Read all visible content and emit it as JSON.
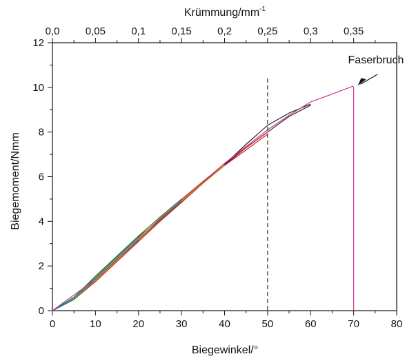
{
  "chart_data": {
    "type": "line",
    "title": "",
    "xlabel": "Biegewinkel/°",
    "ylabel": "Biegemoment/Nmm",
    "x2label": {
      "base": "Krümmung/mm",
      "sup": "-1"
    },
    "xlim": [
      0,
      80
    ],
    "ylim": [
      0,
      12
    ],
    "x2lim": [
      0,
      0.4
    ],
    "xticks": [
      "0",
      "10",
      "20",
      "30",
      "40",
      "50",
      "60",
      "70",
      "80"
    ],
    "yticks": [
      "0",
      "2",
      "4",
      "6",
      "8",
      "10",
      "12"
    ],
    "x2ticks": [
      "0,0",
      "0,05",
      "0,1",
      "0,15",
      "0,2",
      "0,25",
      "0,3",
      "0,35"
    ],
    "grid": false,
    "legend": "none",
    "reference_line": {
      "x": 50,
      "style": "dashed",
      "color": "#333333"
    },
    "annotation": {
      "text": "Faserbruch",
      "x": 70,
      "y": 10.05
    },
    "series": [
      {
        "color": "#222222",
        "x": [
          0,
          5,
          10,
          15,
          20,
          25,
          30,
          35,
          40,
          45,
          50,
          55,
          60
        ],
        "y": [
          0,
          0.55,
          1.35,
          2.25,
          3.15,
          4.0,
          4.85,
          5.7,
          6.55,
          7.45,
          8.3,
          8.85,
          9.25
        ]
      },
      {
        "color": "#222222",
        "x": [
          0,
          5,
          10,
          15,
          20,
          25,
          30,
          35,
          40,
          45,
          50,
          55,
          60
        ],
        "y": [
          0,
          0.6,
          1.45,
          2.4,
          3.3,
          4.1,
          4.95,
          5.75,
          6.55,
          7.3,
          8.0,
          8.7,
          9.2
        ]
      },
      {
        "color": "#cc2222",
        "x": [
          0,
          5,
          10,
          15,
          20,
          25,
          30,
          35,
          40,
          45,
          50
        ],
        "y": [
          0,
          0.5,
          1.3,
          2.2,
          3.1,
          4.0,
          4.85,
          5.7,
          6.5,
          7.3,
          8.0
        ]
      },
      {
        "color": "#cc2222",
        "x": [
          0,
          5,
          10,
          15,
          20,
          25,
          30,
          35,
          40,
          45,
          50
        ],
        "y": [
          0,
          0.55,
          1.4,
          2.3,
          3.2,
          4.05,
          4.9,
          5.75,
          6.5,
          7.2,
          7.9
        ]
      },
      {
        "color": "#b8a820",
        "x": [
          0,
          5,
          10,
          15,
          20,
          25,
          30,
          35,
          40
        ],
        "y": [
          0,
          0.5,
          1.35,
          2.25,
          3.15,
          4.05,
          4.9,
          5.7,
          6.5
        ]
      },
      {
        "color": "#b8a820",
        "x": [
          0,
          5,
          10,
          15,
          20,
          25,
          30,
          35,
          40
        ],
        "y": [
          0,
          0.55,
          1.45,
          2.35,
          3.25,
          4.15,
          5.0,
          5.8,
          6.55
        ]
      },
      {
        "color": "#2a8a4a",
        "x": [
          0,
          5,
          10,
          15,
          20,
          25,
          30
        ],
        "y": [
          0,
          0.5,
          1.4,
          2.3,
          3.2,
          4.05,
          4.9
        ]
      },
      {
        "color": "#2a8a4a",
        "x": [
          0,
          5,
          10,
          15,
          20,
          25,
          30
        ],
        "y": [
          0,
          0.6,
          1.55,
          2.45,
          3.35,
          4.2,
          5.0
        ]
      },
      {
        "color": "#1a7a8a",
        "x": [
          0,
          5,
          10,
          15,
          20
        ],
        "y": [
          0,
          0.5,
          1.4,
          2.3,
          3.15
        ]
      },
      {
        "color": "#1a7a8a",
        "x": [
          0,
          5,
          10,
          15,
          20
        ],
        "y": [
          0,
          0.6,
          1.5,
          2.4,
          3.3
        ]
      },
      {
        "color": "#cc3399",
        "x": [
          0,
          10,
          20,
          30,
          40,
          50,
          55,
          60,
          65,
          69.8,
          70.0,
          70.0
        ],
        "y": [
          0,
          1.4,
          3.2,
          4.95,
          6.6,
          8.1,
          8.75,
          9.35,
          9.7,
          10.05,
          10.0,
          0
        ]
      }
    ]
  }
}
